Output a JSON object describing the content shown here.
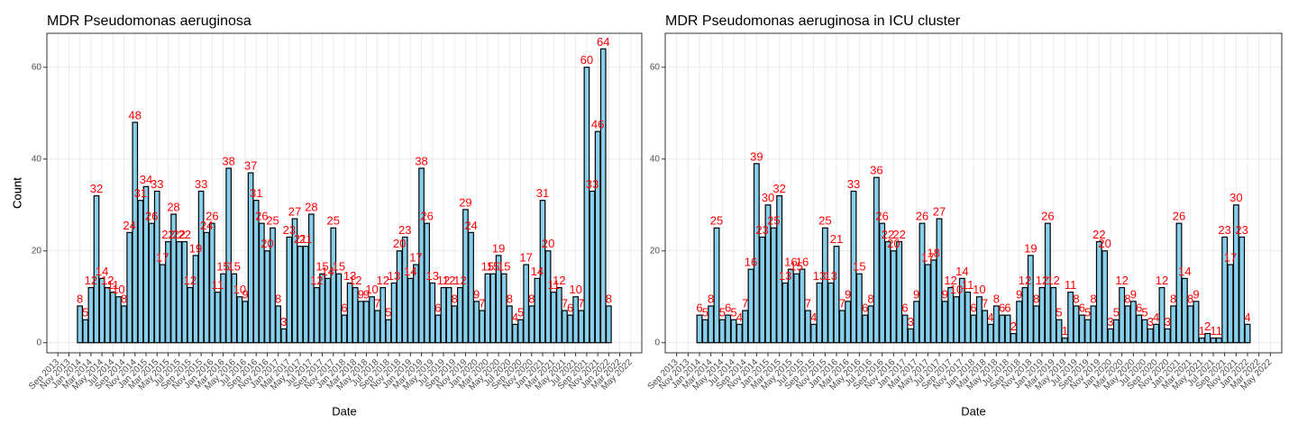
{
  "chart_data": [
    {
      "type": "bar",
      "title": "MDR Pseudomonas aeruginosa",
      "xlabel": "Date",
      "ylabel": "Count",
      "x": [
        "Jan 2014",
        "Feb 2014",
        "Mar 2014",
        "Apr 2014",
        "May 2014",
        "Jun 2014",
        "Jul 2014",
        "Aug 2014",
        "Sep 2014",
        "Oct 2014",
        "Nov 2014",
        "Dec 2014",
        "Jan 2015",
        "Feb 2015",
        "Mar 2015",
        "Apr 2015",
        "May 2015",
        "Jun 2015",
        "Jul 2015",
        "Aug 2015",
        "Sep 2015",
        "Oct 2015",
        "Nov 2015",
        "Dec 2015",
        "Jan 2016",
        "Feb 2016",
        "Mar 2016",
        "Apr 2016",
        "May 2016",
        "Jun 2016",
        "Jul 2016",
        "Aug 2016",
        "Sep 2016",
        "Oct 2016",
        "Nov 2016",
        "Dec 2016",
        "Jan 2017",
        "Feb 2017",
        "Mar 2017",
        "Apr 2017",
        "May 2017",
        "Jun 2017",
        "Jul 2017",
        "Aug 2017",
        "Sep 2017",
        "Oct 2017",
        "Nov 2017",
        "Dec 2017",
        "Jan 2018",
        "Feb 2018",
        "Mar 2018",
        "Apr 2018",
        "May 2018",
        "Jun 2018",
        "Jul 2018",
        "Aug 2018",
        "Sep 2018",
        "Oct 2018",
        "Nov 2018",
        "Dec 2018",
        "Jan 2019",
        "Feb 2019",
        "Mar 2019",
        "Apr 2019",
        "May 2019",
        "Jun 2019",
        "Jul 2019",
        "Aug 2019",
        "Sep 2019",
        "Oct 2019",
        "Nov 2019",
        "Dec 2019",
        "Jan 2020",
        "Feb 2020",
        "Mar 2020",
        "Apr 2020",
        "May 2020",
        "Jun 2020",
        "Jul 2020",
        "Aug 2020",
        "Sep 2020",
        "Oct 2020",
        "Nov 2020",
        "Dec 2020",
        "Jan 2021",
        "Feb 2021",
        "Mar 2021",
        "Apr 2021",
        "May 2021",
        "Jun 2021",
        "Jul 2021",
        "Aug 2021",
        "Sep 2021",
        "Oct 2021",
        "Nov 2021",
        "Dec 2021",
        "Jan 2022"
      ],
      "values": [
        8,
        5,
        12,
        32,
        14,
        12,
        11,
        10,
        8,
        24,
        48,
        31,
        34,
        26,
        33,
        17,
        22,
        28,
        22,
        22,
        12,
        19,
        33,
        24,
        26,
        11,
        15,
        38,
        15,
        10,
        9,
        37,
        31,
        26,
        20,
        25,
        8,
        3,
        23,
        27,
        21,
        21,
        28,
        12,
        15,
        14,
        25,
        15,
        6,
        13,
        12,
        9,
        9,
        10,
        7,
        12,
        5,
        13,
        20,
        23,
        14,
        17,
        38,
        26,
        13,
        6,
        12,
        12,
        8,
        12,
        29,
        24,
        9,
        7,
        15,
        15,
        19,
        15,
        8,
        4,
        5,
        17,
        8,
        14,
        31,
        20,
        11,
        12,
        7,
        6,
        10,
        7,
        60,
        33,
        46,
        64,
        8
      ],
      "color": "#87ceeb",
      "edgecolor": "#000000",
      "label_color": "#ff0000",
      "xlim": [
        "Jul 2013",
        "Jul 2022"
      ],
      "xticks": [
        "Sep 2013",
        "Nov 2013",
        "Jan 2014",
        "Mar 2014",
        "May 2014",
        "Jul 2014",
        "Sep 2014",
        "Nov 2014",
        "Jan 2015",
        "Mar 2015",
        "May 2015",
        "Jul 2015",
        "Sep 2015",
        "Nov 2015",
        "Jan 2016",
        "Mar 2016",
        "May 2016",
        "Jul 2016",
        "Sep 2016",
        "Nov 2016",
        "Jan 2017",
        "Mar 2017",
        "May 2017",
        "Jul 2017",
        "Sep 2017",
        "Nov 2017",
        "Jan 2018",
        "Mar 2018",
        "May 2018",
        "Jul 2018",
        "Sep 2018",
        "Nov 2018",
        "Jan 2019",
        "Mar 2019",
        "May 2019",
        "Jul 2019",
        "Sep 2019",
        "Nov 2019",
        "Jan 2020",
        "Mar 2020",
        "May 2020",
        "Jul 2020",
        "Sep 2020",
        "Nov 2020",
        "Jan 2021",
        "Mar 2021",
        "May 2021",
        "Jul 2021",
        "Sep 2021",
        "Nov 2021",
        "Jan 2022",
        "Mar 2022",
        "May 2022"
      ],
      "ylim": [
        -2.2,
        67.4
      ],
      "yticks": [
        0,
        20,
        40,
        60
      ],
      "grid": true
    },
    {
      "type": "bar",
      "title": "MDR Pseudomonas aeruginosa in ICU cluster",
      "xlabel": "Date",
      "ylabel": "Count",
      "x": [
        "Jan 2014",
        "Feb 2014",
        "Mar 2014",
        "Apr 2014",
        "May 2014",
        "Jun 2014",
        "Jul 2014",
        "Aug 2014",
        "Sep 2014",
        "Oct 2014",
        "Nov 2014",
        "Dec 2014",
        "Jan 2015",
        "Feb 2015",
        "Mar 2015",
        "Apr 2015",
        "May 2015",
        "Jun 2015",
        "Jul 2015",
        "Aug 2015",
        "Sep 2015",
        "Oct 2015",
        "Nov 2015",
        "Dec 2015",
        "Jan 2016",
        "Feb 2016",
        "Mar 2016",
        "Apr 2016",
        "May 2016",
        "Jun 2016",
        "Jul 2016",
        "Aug 2016",
        "Sep 2016",
        "Oct 2016",
        "Nov 2016",
        "Dec 2016",
        "Jan 2017",
        "Feb 2017",
        "Mar 2017",
        "Apr 2017",
        "May 2017",
        "Jun 2017",
        "Jul 2017",
        "Aug 2017",
        "Sep 2017",
        "Oct 2017",
        "Nov 2017",
        "Dec 2017",
        "Jan 2018",
        "Feb 2018",
        "Mar 2018",
        "Apr 2018",
        "May 2018",
        "Jun 2018",
        "Jul 2018",
        "Aug 2018",
        "Sep 2018",
        "Oct 2018",
        "Nov 2018",
        "Dec 2018",
        "Jan 2019",
        "Feb 2019",
        "Mar 2019",
        "Apr 2019",
        "May 2019",
        "Jun 2019",
        "Jul 2019",
        "Aug 2019",
        "Sep 2019",
        "Oct 2019",
        "Nov 2019",
        "Dec 2019",
        "Jan 2020",
        "Feb 2020",
        "Mar 2020",
        "Apr 2020",
        "May 2020",
        "Jun 2020",
        "Jul 2020",
        "Aug 2020",
        "Sep 2020",
        "Oct 2020",
        "Nov 2020",
        "Dec 2020",
        "Jan 2021",
        "Feb 2021",
        "Mar 2021",
        "Apr 2021",
        "May 2021",
        "Jun 2021",
        "Jul 2021",
        "Aug 2021",
        "Sep 2021",
        "Oct 2021",
        "Nov 2021",
        "Dec 2021",
        "Jan 2022"
      ],
      "values": [
        6,
        5,
        8,
        25,
        5,
        6,
        5,
        4,
        7,
        16,
        39,
        23,
        30,
        25,
        32,
        13,
        16,
        15,
        16,
        7,
        4,
        13,
        25,
        13,
        21,
        7,
        9,
        33,
        15,
        6,
        8,
        36,
        26,
        22,
        20,
        22,
        6,
        3,
        9,
        26,
        17,
        18,
        27,
        9,
        12,
        10,
        14,
        11,
        6,
        10,
        7,
        4,
        8,
        6,
        6,
        2,
        9,
        12,
        19,
        8,
        12,
        26,
        12,
        5,
        1,
        11,
        8,
        6,
        5,
        8,
        22,
        20,
        3,
        5,
        12,
        8,
        9,
        6,
        5,
        3,
        4,
        12,
        3,
        8,
        26,
        14,
        8,
        9,
        1,
        2,
        1,
        1,
        23,
        17,
        30,
        23,
        4
      ],
      "color": "#87ceeb",
      "edgecolor": "#000000",
      "label_color": "#ff0000",
      "xlim": [
        "Jul 2013",
        "Jul 2022"
      ],
      "xticks": [
        "Sep 2013",
        "Nov 2013",
        "Jan 2014",
        "Mar 2014",
        "May 2014",
        "Jul 2014",
        "Sep 2014",
        "Nov 2014",
        "Jan 2015",
        "Mar 2015",
        "May 2015",
        "Jul 2015",
        "Sep 2015",
        "Nov 2015",
        "Jan 2016",
        "Mar 2016",
        "May 2016",
        "Jul 2016",
        "Sep 2016",
        "Nov 2016",
        "Jan 2017",
        "Mar 2017",
        "May 2017",
        "Jul 2017",
        "Sep 2017",
        "Nov 2017",
        "Jan 2018",
        "Mar 2018",
        "May 2018",
        "Jul 2018",
        "Sep 2018",
        "Nov 2018",
        "Jan 2019",
        "Mar 2019",
        "May 2019",
        "Jul 2019",
        "Sep 2019",
        "Nov 2019",
        "Jan 2020",
        "Mar 2020",
        "May 2020",
        "Jul 2020",
        "Sep 2020",
        "Nov 2020",
        "Jan 2021",
        "Mar 2021",
        "May 2021",
        "Jul 2021",
        "Sep 2021",
        "Nov 2021",
        "Jan 2022",
        "Mar 2022",
        "May 2022"
      ],
      "ylim": [
        -2.2,
        67.4
      ],
      "yticks": [
        0,
        20,
        40,
        60
      ],
      "grid": true
    }
  ]
}
